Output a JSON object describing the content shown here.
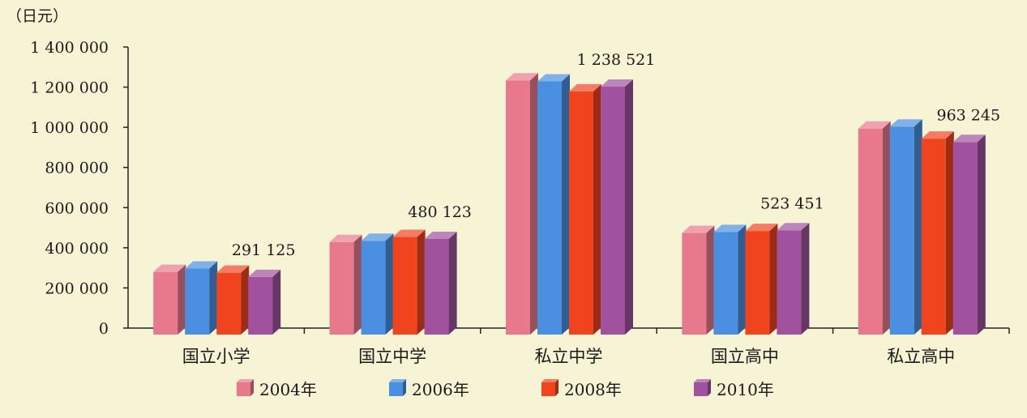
{
  "chart_data": {
    "type": "bar",
    "unit_label": "（日元）",
    "categories": [
      "国立小学",
      "国立中学",
      "私立中学",
      "国立高中",
      "私立高中"
    ],
    "series": [
      {
        "name": "2004年",
        "color": "#e8798c",
        "values": [
          316000,
          465000,
          1270000,
          510000,
          1030000
        ]
      },
      {
        "name": "2006年",
        "color": "#4a8fe0",
        "values": [
          333000,
          471000,
          1265000,
          515000,
          1040000
        ]
      },
      {
        "name": "2008年",
        "color": "#f0441e",
        "values": [
          312000,
          490000,
          1215000,
          520000,
          980000
        ]
      },
      {
        "name": "2010年",
        "color": "#a0529e",
        "values": [
          291125,
          480123,
          1238521,
          523451,
          963245
        ]
      }
    ],
    "data_labels": [
      "291 125",
      "480 123",
      "1 238 521",
      "523 451",
      "963 245"
    ],
    "y_ticks": [
      "0",
      "200 000",
      "400 000",
      "600 000",
      "800 000",
      "1 000 000",
      "1 200 000",
      "1 400 000"
    ],
    "ylim": [
      0,
      1400000
    ],
    "grid": false,
    "legend_position": "bottom"
  }
}
